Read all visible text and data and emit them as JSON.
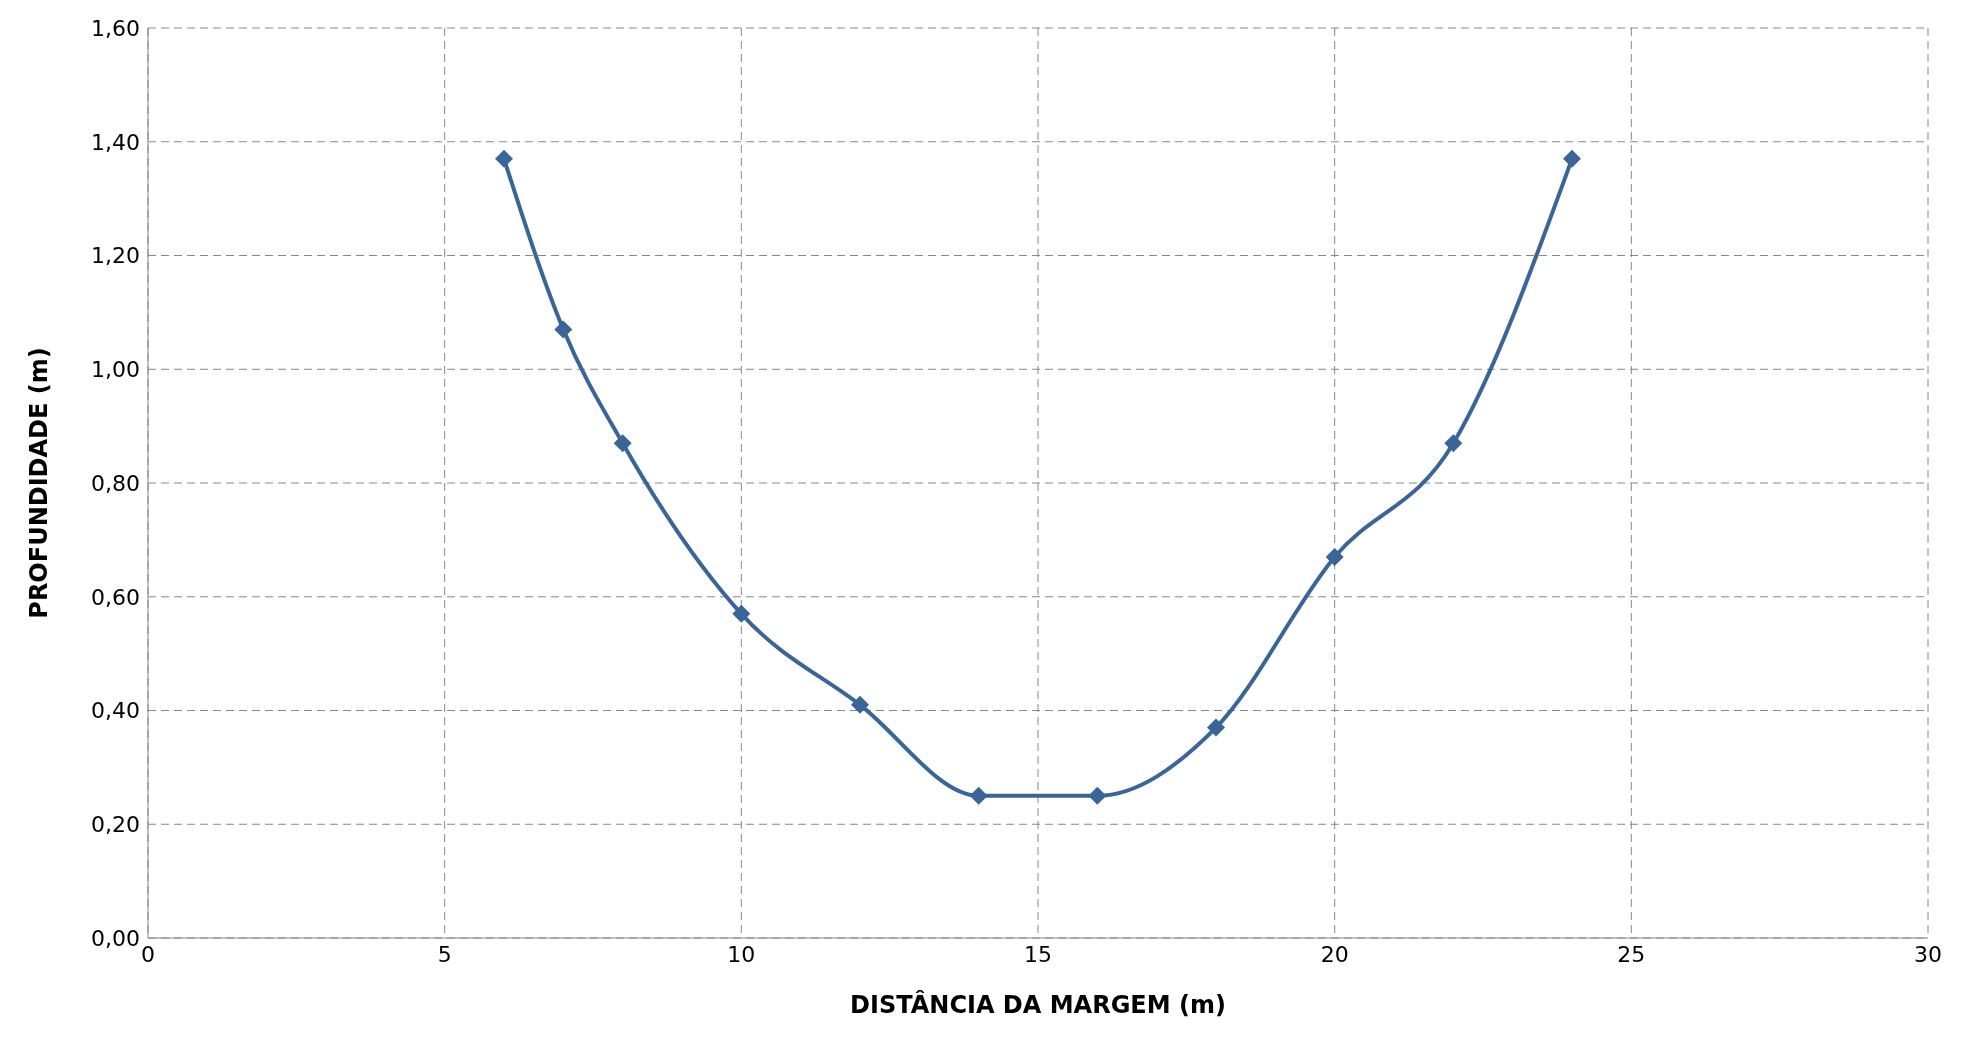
{
  "chart_data": {
    "type": "line",
    "xlabel": "DISTÂNCIA DA MARGEM (m)",
    "ylabel": "PROFUNDIDADE (m)",
    "x": [
      6,
      7,
      8,
      10,
      12,
      14,
      16,
      18,
      20,
      22,
      24
    ],
    "series": [
      {
        "color": "#3a6599",
        "values": [
          1.37,
          1.07,
          0.87,
          0.57,
          0.41,
          0.25,
          0.25,
          0.37,
          0.67,
          0.87,
          1.37
        ]
      }
    ],
    "xlim": [
      0,
      30
    ],
    "xticks": [
      0,
      5,
      10,
      15,
      20,
      25,
      30
    ],
    "ylim": [
      0,
      1.6
    ],
    "yticks": [
      {
        "value": 0,
        "label": "0,00"
      },
      {
        "value": 0.2,
        "label": "0,20"
      },
      {
        "value": 0.4,
        "label": "0,40"
      },
      {
        "value": 0.6,
        "label": "0,60"
      },
      {
        "value": 0.8,
        "label": "0,80"
      },
      {
        "value": 1.0,
        "label": "1,00"
      },
      {
        "value": 1.2,
        "label": "1,20"
      },
      {
        "value": 1.4,
        "label": "1,40"
      },
      {
        "value": 1.6,
        "label": "1,60"
      }
    ],
    "grid": true,
    "marker": "diamond",
    "line_style": "solid",
    "legend": false
  }
}
